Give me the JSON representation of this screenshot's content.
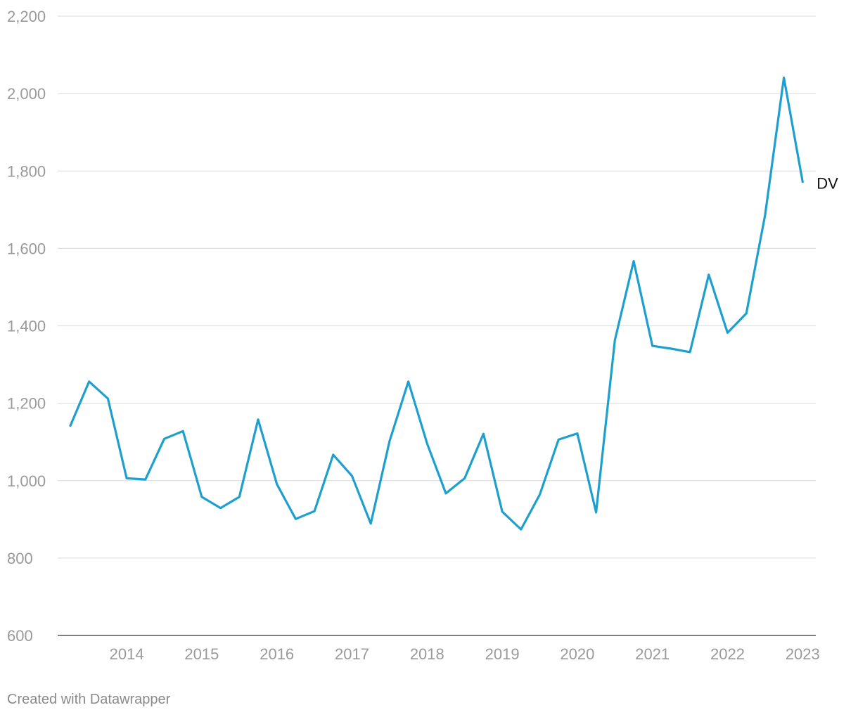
{
  "chart_data": {
    "type": "line",
    "title": "",
    "xlabel": "",
    "ylabel": "",
    "ylim": [
      600,
      2200
    ],
    "y_ticks": [
      600,
      800,
      1000,
      1200,
      1400,
      1600,
      1800,
      2000,
      2200
    ],
    "y_tick_labels": [
      "600",
      "800",
      "1,000",
      "1,200",
      "1,400",
      "1,600",
      "1,800",
      "2,000",
      "2,200"
    ],
    "x_ticks": [
      "2014",
      "2015",
      "2016",
      "2017",
      "2018",
      "2019",
      "2020",
      "2021",
      "2022",
      "2023"
    ],
    "grid": true,
    "x": [
      "2013 Q2",
      "2013 Q3",
      "2013 Q4",
      "2014 Q1",
      "2014 Q2",
      "2014 Q3",
      "2014 Q4",
      "2015 Q1",
      "2015 Q2",
      "2015 Q3",
      "2015 Q4",
      "2016 Q1",
      "2016 Q2",
      "2016 Q3",
      "2016 Q4",
      "2017 Q1",
      "2017 Q2",
      "2017 Q3",
      "2017 Q4",
      "2018 Q1",
      "2018 Q2",
      "2018 Q3",
      "2018 Q4",
      "2019 Q1",
      "2019 Q2",
      "2019 Q3",
      "2019 Q4",
      "2020 Q1",
      "2020 Q2",
      "2020 Q3",
      "2020 Q4",
      "2021 Q1",
      "2021 Q2",
      "2021 Q3",
      "2021 Q4",
      "2022 Q1",
      "2022 Q2",
      "2022 Q3",
      "2022 Q4",
      "2023 Q1"
    ],
    "series": [
      {
        "name": "DV",
        "color": "#1d9fd0",
        "values": [
          1142,
          1256,
          1212,
          1006,
          1003,
          1108,
          1128,
          958,
          929,
          958,
          1158,
          991,
          901,
          921,
          1067,
          1012,
          889,
          1102,
          1256,
          1096,
          967,
          1006,
          1121,
          920,
          874,
          964,
          1106,
          1122,
          918,
          1363,
          1567,
          1348,
          1341,
          1332,
          1532,
          1382,
          1432,
          1686,
          2041,
          1772
        ]
      }
    ]
  },
  "footer": {
    "credit": "Created with Datawrapper"
  }
}
